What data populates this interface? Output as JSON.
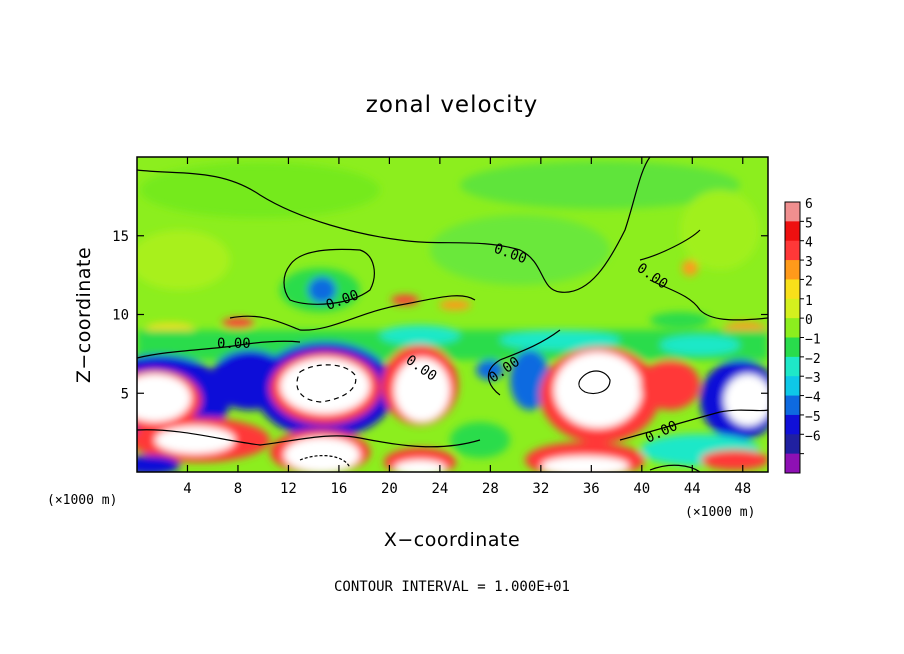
{
  "page": {
    "title": "zonal velocity",
    "footer": "CONTOUR INTERVAL = 1.000E+01"
  },
  "chart_data": {
    "type": "heatmap",
    "title": "zonal velocity",
    "xlabel": "X−coordinate",
    "ylabel": "Z−coordinate",
    "x_unit_left": "(×1000 m)",
    "x_unit_right": "(×1000 m)",
    "xlim": [
      0,
      50
    ],
    "ylim": [
      0,
      20
    ],
    "xticks": [
      4,
      8,
      12,
      16,
      20,
      24,
      28,
      32,
      36,
      40,
      44,
      48
    ],
    "yticks": [
      5,
      10,
      15
    ],
    "colorbar": {
      "levels": [
        "6",
        "5",
        "4",
        "3",
        "2",
        "1",
        "0",
        "−1",
        "−2",
        "−3",
        "−4",
        "−5",
        "−6"
      ],
      "colors": [
        "#f08f8f",
        "#ee1010",
        "#ff3838",
        "#ff9a1a",
        "#f8e01a",
        "#d4f01e",
        "#8cee1e",
        "#29dc4c",
        "#1ee8c8",
        "#0ec8e8",
        "#0e6ae0",
        "#1010d8",
        "#2020a0",
        "#8e10b4"
      ]
    },
    "contour_interval": "1.000E+01",
    "contour_labels": [
      "0.00",
      "0.00",
      "0.00",
      "0.00",
      "0.00",
      "0.00",
      "0.00",
      "0.00"
    ],
    "features": [
      {
        "x": 14.8,
        "z": 11.8,
        "value": -4
      },
      {
        "x": 16.0,
        "z": 5.5,
        "value": -6
      },
      {
        "x": 3.5,
        "z": 5.5,
        "value": -6
      },
      {
        "x": 23.5,
        "z": 5.5,
        "value": -6
      },
      {
        "x": 36.0,
        "z": 5.5,
        "value": -6
      },
      {
        "x": 46.0,
        "z": 4.5,
        "value": -6
      },
      {
        "x": 5.5,
        "z": 2.0,
        "value": 6
      },
      {
        "x": 16.5,
        "z": 1.5,
        "value": 6
      },
      {
        "x": 24.0,
        "z": 0.5,
        "value": 6
      },
      {
        "x": 34.0,
        "z": 0.7,
        "value": 6
      },
      {
        "x": 43.0,
        "z": 6.0,
        "value": 5
      }
    ]
  }
}
